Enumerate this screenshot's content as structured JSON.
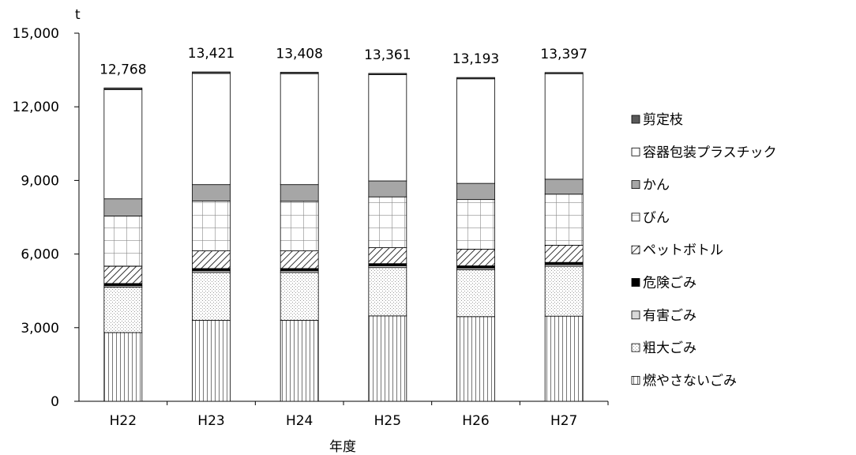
{
  "chart_data": {
    "type": "bar",
    "stacked": true,
    "title": "",
    "xlabel": "年度",
    "ylabel": "t",
    "ylim": [
      0,
      15000
    ],
    "yticks": [
      0,
      3000,
      6000,
      9000,
      12000,
      15000
    ],
    "ytick_labels": [
      "0",
      "3,000",
      "6,000",
      "9,000",
      "12,000",
      "15,000"
    ],
    "grid": false,
    "legend_position": "right",
    "categories": [
      "H22",
      "H23",
      "H24",
      "H25",
      "H26",
      "H27"
    ],
    "totals": [
      12768,
      13421,
      13408,
      13361,
      13193,
      13397
    ],
    "total_labels": [
      "12,768",
      "13,421",
      "13,408",
      "13,361",
      "13,193",
      "13,397"
    ],
    "series": [
      {
        "name": "燃やさないごみ",
        "pattern": "vertical-lines",
        "values": [
          2800,
          3300,
          3300,
          3480,
          3450,
          3470
        ]
      },
      {
        "name": "粗大ごみ",
        "pattern": "dots",
        "values": [
          1850,
          1950,
          1950,
          1970,
          1910,
          2030
        ]
      },
      {
        "name": "有害ごみ",
        "pattern": "light-gray",
        "values": [
          60,
          70,
          70,
          70,
          70,
          70
        ]
      },
      {
        "name": "危険ごみ",
        "pattern": "black",
        "values": [
          90,
          90,
          90,
          90,
          90,
          90
        ]
      },
      {
        "name": "ペットボトル",
        "pattern": "diagonal-hatch",
        "values": [
          700,
          720,
          720,
          650,
          680,
          700
        ]
      },
      {
        "name": "びん",
        "pattern": "grid",
        "values": [
          2050,
          2030,
          2020,
          2070,
          2020,
          2080
        ]
      },
      {
        "name": "かん",
        "pattern": "medium-gray",
        "values": [
          700,
          670,
          680,
          650,
          660,
          610
        ]
      },
      {
        "name": "容器包装プラスチック",
        "pattern": "white",
        "values": [
          4450,
          4530,
          4520,
          4330,
          4260,
          4300
        ]
      },
      {
        "name": "剪定枝",
        "pattern": "dark-gray",
        "values": [
          68,
          61,
          58,
          51,
          53,
          47
        ]
      }
    ]
  }
}
